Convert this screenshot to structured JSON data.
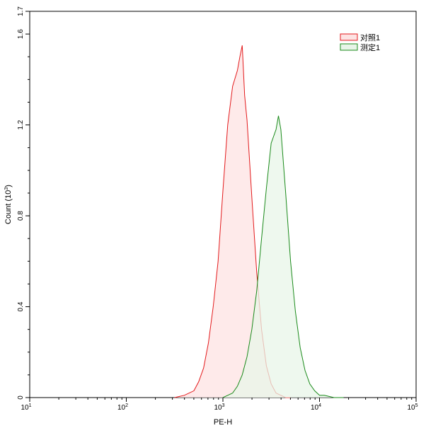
{
  "chart_data": {
    "type": "area",
    "xlabel": "PE-H",
    "ylabel": "Count (10^3)",
    "ylabel_parts": {
      "text": "Count  (10",
      "exp": "3",
      "close": ")"
    },
    "x_scale": "log",
    "xlim": [
      10,
      100000
    ],
    "ylim": [
      0,
      1.7
    ],
    "x_ticks": [
      {
        "value": 10,
        "base": "10",
        "exp": "1"
      },
      {
        "value": 100,
        "base": "10",
        "exp": "2"
      },
      {
        "value": 1000,
        "base": "10",
        "exp": "3"
      },
      {
        "value": 10000,
        "base": "10",
        "exp": "4"
      },
      {
        "value": 100000,
        "base": "10",
        "exp": "5"
      }
    ],
    "y_ticks": [
      {
        "value": 0,
        "label": "0"
      },
      {
        "value": 0.4,
        "label": "0.4"
      },
      {
        "value": 0.8,
        "label": "0.8"
      },
      {
        "value": 1.2,
        "label": "1.2"
      },
      {
        "value": 1.6,
        "label": "1.6"
      },
      {
        "value": 1.7,
        "label": "1.7"
      }
    ],
    "grid": false,
    "legend_position": "top-right",
    "series": [
      {
        "name": "对照1",
        "color": "#e31a1c",
        "fill": "#fde3e3",
        "x": [
          316,
          398,
          447,
          501,
          562,
          631,
          708,
          794,
          891,
          1000,
          1122,
          1259,
          1413,
          1500,
          1585,
          1679,
          1778,
          1995,
          2239,
          2512,
          2818,
          3162,
          3548,
          3981,
          4467,
          5012
        ],
        "y": [
          0,
          0.01,
          0.02,
          0.03,
          0.07,
          0.13,
          0.24,
          0.4,
          0.6,
          0.91,
          1.2,
          1.37,
          1.44,
          1.5,
          1.55,
          1.33,
          1.22,
          0.88,
          0.55,
          0.3,
          0.14,
          0.06,
          0.02,
          0.01,
          0,
          0
        ]
      },
      {
        "name": "测定1",
        "color": "#1a8a1a",
        "fill": "#e8f5e8",
        "x": [
          1000,
          1122,
          1259,
          1413,
          1585,
          1778,
          1995,
          2239,
          2512,
          2818,
          3162,
          3548,
          3758,
          3981,
          4467,
          5012,
          5623,
          6310,
          7079,
          7943,
          8913,
          10000,
          11220,
          12589,
          14125,
          17783
        ],
        "y": [
          0,
          0.01,
          0.02,
          0.05,
          0.1,
          0.18,
          0.3,
          0.47,
          0.7,
          0.92,
          1.12,
          1.18,
          1.24,
          1.18,
          0.9,
          0.6,
          0.38,
          0.22,
          0.12,
          0.06,
          0.03,
          0.01,
          0.01,
          0.005,
          0,
          0
        ]
      }
    ]
  }
}
